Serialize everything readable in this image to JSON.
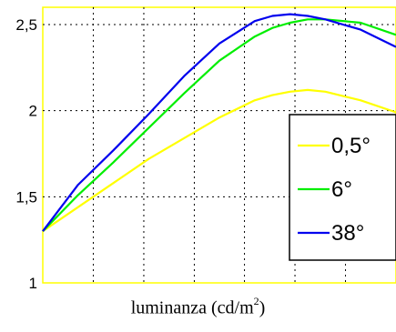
{
  "chart_data": {
    "type": "line",
    "xlabel": "luminanza (cd/m",
    "xlabel_sup": "2",
    "xlabel_close": ")",
    "ylim": [
      1,
      2.6
    ],
    "yticks": [
      1,
      1.5,
      2,
      2.5
    ],
    "ytick_labels": [
      "1",
      "1,5",
      "2",
      "2,5"
    ],
    "xlim": [
      0,
      1
    ],
    "xgrid": [
      0.143,
      0.286,
      0.429,
      0.571,
      0.714,
      0.857
    ],
    "grid": true,
    "legend_placement": "right",
    "series": [
      {
        "name": "0,5°",
        "color": "#ffff00",
        "x": [
          0,
          0.1,
          0.2,
          0.3,
          0.4,
          0.5,
          0.6,
          0.65,
          0.7,
          0.75,
          0.8,
          0.9,
          1.0
        ],
        "y": [
          1.3,
          1.44,
          1.58,
          1.72,
          1.84,
          1.96,
          2.06,
          2.09,
          2.11,
          2.12,
          2.11,
          2.06,
          1.99
        ]
      },
      {
        "name": "6°",
        "color": "#00ee00",
        "x": [
          0,
          0.1,
          0.2,
          0.3,
          0.4,
          0.5,
          0.6,
          0.65,
          0.7,
          0.75,
          0.8,
          0.9,
          1.0
        ],
        "y": [
          1.3,
          1.51,
          1.7,
          1.9,
          2.1,
          2.29,
          2.43,
          2.48,
          2.51,
          2.53,
          2.53,
          2.51,
          2.44
        ]
      },
      {
        "name": "38°",
        "color": "#0000ee",
        "x": [
          0,
          0.1,
          0.2,
          0.3,
          0.4,
          0.5,
          0.6,
          0.65,
          0.7,
          0.75,
          0.8,
          0.9,
          1.0
        ],
        "y": [
          1.3,
          1.57,
          1.77,
          1.98,
          2.2,
          2.39,
          2.52,
          2.55,
          2.56,
          2.55,
          2.53,
          2.47,
          2.37
        ]
      }
    ]
  }
}
